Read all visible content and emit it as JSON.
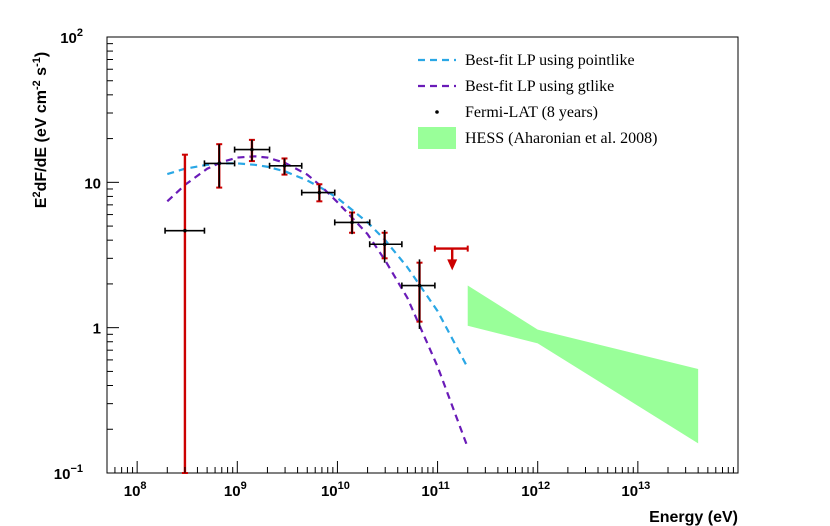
{
  "chart_data": {
    "type": "scatter",
    "title": "",
    "xlabel": "Energy (eV)",
    "ylabel": {
      "base": "E",
      "sup1": "2",
      "mid": "dF/dE (eV cm",
      "sup2": "-2",
      "mid2": " s",
      "sup3": "-1",
      "end": ")"
    },
    "xscale": "log",
    "yscale": "log",
    "xlim": [
      50000000.0,
      100000000000000.0
    ],
    "ylim": [
      0.1,
      100
    ],
    "x_ticks": [
      {
        "exp": 8,
        "base": "10",
        "sup": "8"
      },
      {
        "exp": 9,
        "base": "10",
        "sup": "9"
      },
      {
        "exp": 10,
        "base": "10",
        "sup": "10"
      },
      {
        "exp": 11,
        "base": "10",
        "sup": "11"
      },
      {
        "exp": 12,
        "base": "10",
        "sup": "12"
      },
      {
        "exp": 13,
        "base": "10",
        "sup": "13"
      }
    ],
    "y_ticks": [
      {
        "value": 0.1,
        "base": "10",
        "sup": "−1"
      },
      {
        "value": 1,
        "label": "1"
      },
      {
        "value": 10,
        "label": "10"
      },
      {
        "value": 100,
        "base": "10",
        "sup": "2"
      }
    ],
    "legend": {
      "position": "top-right",
      "entries": [
        {
          "label": "Best-fit LP using pointlike",
          "marker": "dashed-line",
          "color": "#2aa7e5"
        },
        {
          "label": "Best-fit LP using gtlike",
          "marker": "dashed-line",
          "color": "#6a1bb8"
        },
        {
          "label": "Fermi-LAT (8 years)",
          "marker": "point",
          "color": "#000000"
        },
        {
          "label": "HESS (Aharonian et al. 2008)",
          "marker": "band",
          "color": "#99ff99"
        }
      ]
    },
    "series": [
      {
        "name": "Best-fit LP using pointlike",
        "color": "#2aa7e5",
        "style": "dashed",
        "x": [
          200000000.0,
          300000000.0,
          500000000.0,
          700000000.0,
          1000000000.0,
          1500000000.0,
          2000000000.0,
          3000000000.0,
          5000000000.0,
          7000000000.0,
          10000000000.0,
          20000000000.0,
          30000000000.0,
          50000000000.0,
          100000000000.0,
          200000000000.0
        ],
        "y": [
          11.4,
          12.4,
          13.2,
          13.5,
          13.5,
          13.2,
          12.8,
          11.9,
          10.3,
          9.1,
          7.8,
          5.3,
          4.0,
          2.6,
          1.3,
          0.53
        ]
      },
      {
        "name": "Best-fit LP using gtlike",
        "color": "#6a1bb8",
        "style": "dashed",
        "x": [
          200000000.0,
          300000000.0,
          500000000.0,
          700000000.0,
          1000000000.0,
          1500000000.0,
          2000000000.0,
          3000000000.0,
          5000000000.0,
          7000000000.0,
          10000000000.0,
          20000000000.0,
          30000000000.0,
          50000000000.0,
          100000000000.0,
          200000000000.0
        ],
        "y": [
          7.4,
          9.6,
          12.4,
          13.8,
          14.8,
          15.1,
          14.8,
          13.6,
          11.3,
          9.3,
          7.3,
          4.4,
          2.9,
          1.6,
          0.54,
          0.15
        ]
      },
      {
        "name": "Fermi-LAT (8 years)",
        "color": "#000000",
        "points": [
          {
            "x": 300000000.0,
            "xlo": 190000000.0,
            "xhi": 470000000.0,
            "y": 4.65,
            "ylo": 0.1,
            "yhi": 15.5,
            "sys_lo": 0.1,
            "sys_hi": 15.5
          },
          {
            "x": 660000000.0,
            "xlo": 470000000.0,
            "xhi": 940000000.0,
            "y": 13.5,
            "ylo": 9.2,
            "yhi": 18.3,
            "sys_lo": 9.2,
            "sys_hi": 18.3
          },
          {
            "x": 1400000000.0,
            "xlo": 940000000.0,
            "xhi": 2100000000.0,
            "y": 16.8,
            "ylo": 14.0,
            "yhi": 19.6,
            "sys_lo": 14.0,
            "sys_hi": 19.6
          },
          {
            "x": 2960000000.0,
            "xlo": 2100000000.0,
            "xhi": 4400000000.0,
            "y": 13.0,
            "ylo": 11.3,
            "yhi": 14.6,
            "sys_lo": 11.3,
            "sys_hi": 14.6
          },
          {
            "x": 6600000000.0,
            "xlo": 4400000000.0,
            "xhi": 9400000000.0,
            "y": 8.5,
            "ylo": 7.5,
            "yhi": 9.6,
            "sys_lo": 7.4,
            "sys_hi": 9.7
          },
          {
            "x": 14000000000.0,
            "xlo": 9400000000.0,
            "xhi": 21000000000.0,
            "y": 5.3,
            "ylo": 4.4,
            "yhi": 6.3,
            "sys_lo": 4.5,
            "sys_hi": 6.2
          },
          {
            "x": 29600000000.0,
            "xlo": 21000000000.0,
            "xhi": 44000000000.0,
            "y": 3.75,
            "ylo": 2.8,
            "yhi": 4.7,
            "sys_lo": 3.0,
            "sys_hi": 4.5
          },
          {
            "x": 66000000000.0,
            "xlo": 44000000000.0,
            "xhi": 94000000000.0,
            "y": 1.95,
            "ylo": 0.98,
            "yhi": 2.95,
            "sys_lo": 1.1,
            "sys_hi": 2.8
          }
        ]
      },
      {
        "name": "Fermi-LAT upper limit",
        "color": "#cc0000",
        "upper_limits": [
          {
            "x": 140000000000.0,
            "xlo": 94000000000.0,
            "xhi": 200000000000.0,
            "y": 3.5,
            "arrow_to": 2.6
          }
        ]
      },
      {
        "name": "HESS (Aharonian et al. 2008)",
        "color": "#99ff99",
        "band": {
          "x": [
            200000000000.0,
            1000000000000.0,
            40000000000000.0
          ],
          "y_upper": [
            1.95,
            0.97,
            0.52
          ],
          "y_lower": [
            1.03,
            0.78,
            0.16
          ]
        }
      }
    ]
  }
}
